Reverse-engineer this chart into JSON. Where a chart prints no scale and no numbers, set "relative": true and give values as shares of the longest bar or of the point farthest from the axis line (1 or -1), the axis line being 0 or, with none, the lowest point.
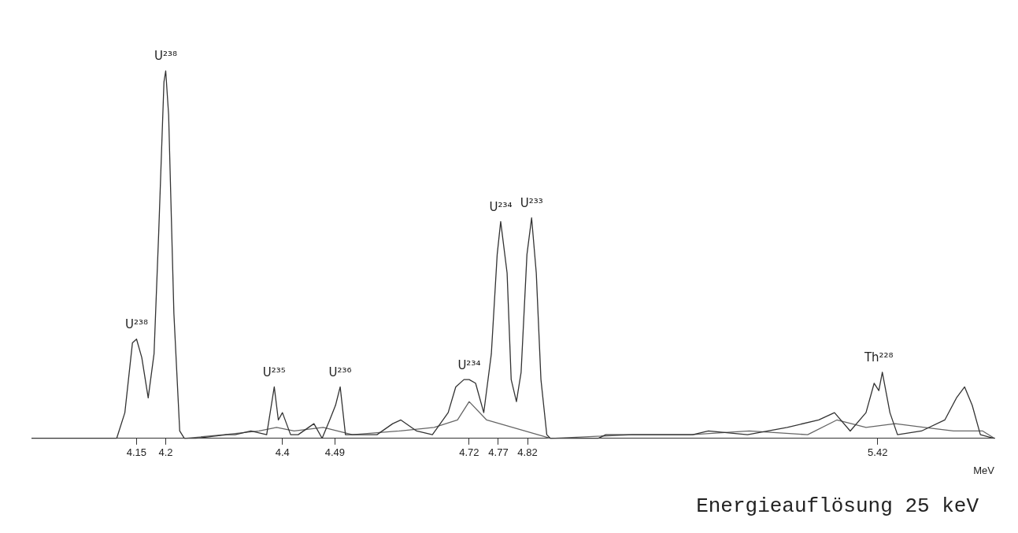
{
  "chart_data": {
    "type": "line",
    "relative": true,
    "xlabel": "MeV",
    "xlim": [
      3.97,
      5.62
    ],
    "xticks": [
      4.15,
      4.2,
      4.4,
      4.49,
      4.72,
      4.77,
      4.82,
      5.42
    ],
    "grid": false,
    "legend": false,
    "marker": "none",
    "line_style": "solid",
    "series": [
      {
        "color": "#333333",
        "x": [
          3.97,
          4.116,
          4.13,
          4.143,
          4.15,
          4.159,
          4.17,
          4.18,
          4.188,
          4.197,
          4.2,
          4.205,
          4.214,
          4.224,
          4.232,
          4.251,
          4.305,
          4.319,
          4.346,
          4.373,
          4.386,
          4.393,
          4.4,
          4.414,
          4.427,
          4.454,
          4.468,
          4.481,
          4.491,
          4.499,
          4.508,
          4.535,
          4.562,
          4.589,
          4.603,
          4.63,
          4.657,
          4.684,
          4.697,
          4.711,
          4.72,
          4.731,
          4.745,
          4.758,
          4.768,
          4.774,
          4.785,
          4.792,
          4.801,
          4.809,
          4.819,
          4.827,
          4.835,
          4.843,
          4.853,
          4.859,
          4.941,
          4.954,
          4.995,
          5.049,
          5.103,
          5.13,
          5.197,
          5.265,
          5.319,
          5.346,
          5.373,
          5.4,
          5.414,
          5.422,
          5.428,
          5.441,
          5.454,
          5.495,
          5.535,
          5.555,
          5.569,
          5.582,
          5.596,
          5.62
        ],
        "values": [
          0,
          0,
          0.07,
          0.26,
          0.27,
          0.22,
          0.11,
          0.23,
          0.56,
          0.97,
          1,
          0.88,
          0.34,
          0.02,
          0,
          0,
          0.01,
          0.01,
          0.02,
          0.01,
          0.14,
          0.05,
          0.07,
          0.01,
          0.01,
          0.04,
          0,
          0.05,
          0.09,
          0.14,
          0.01,
          0.01,
          0.01,
          0.04,
          0.05,
          0.02,
          0.01,
          0.07,
          0.14,
          0.16,
          0.16,
          0.15,
          0.07,
          0.23,
          0.5,
          0.59,
          0.45,
          0.16,
          0.1,
          0.18,
          0.5,
          0.6,
          0.45,
          0.16,
          0.01,
          0,
          0,
          0.01,
          0.01,
          0.01,
          0.01,
          0.02,
          0.01,
          0.03,
          0.05,
          0.07,
          0.02,
          0.07,
          0.15,
          0.13,
          0.18,
          0.07,
          0.01,
          0.02,
          0.05,
          0.11,
          0.14,
          0.09,
          0.01,
          0
        ]
      },
      {
        "color": "#666666",
        "x": [
          4.232,
          4.3,
          4.36,
          4.39,
          4.42,
          4.47,
          4.52,
          4.6,
          4.66,
          4.7,
          4.72,
          4.75,
          4.86,
          5.0,
          5.1,
          5.2,
          5.3,
          5.35,
          5.4,
          5.45,
          5.5,
          5.55,
          5.6,
          5.62
        ],
        "values": [
          0,
          0.01,
          0.02,
          0.03,
          0.02,
          0.03,
          0.01,
          0.02,
          0.03,
          0.05,
          0.1,
          0.05,
          0,
          0.01,
          0.01,
          0.02,
          0.01,
          0.05,
          0.03,
          0.04,
          0.03,
          0.02,
          0.02,
          0
        ]
      }
    ],
    "annotations": [
      {
        "text": "U²³⁸",
        "x": 4.15,
        "y": 0.27
      },
      {
        "text": "U²³⁸",
        "x": 4.2,
        "y": 1
      },
      {
        "text": "U²³⁵",
        "x": 4.386,
        "y": 0.14
      },
      {
        "text": "U²³⁶",
        "x": 4.499,
        "y": 0.14
      },
      {
        "text": "U²³⁴",
        "x": 4.72,
        "y": 0.16
      },
      {
        "text": "U²³⁴",
        "x": 4.774,
        "y": 0.59
      },
      {
        "text": "U²³³",
        "x": 4.827,
        "y": 0.6
      },
      {
        "text": "Th²²⁸",
        "x": 5.422,
        "y": 0.18
      },
      "Energieauflösung 25 keV"
    ]
  }
}
